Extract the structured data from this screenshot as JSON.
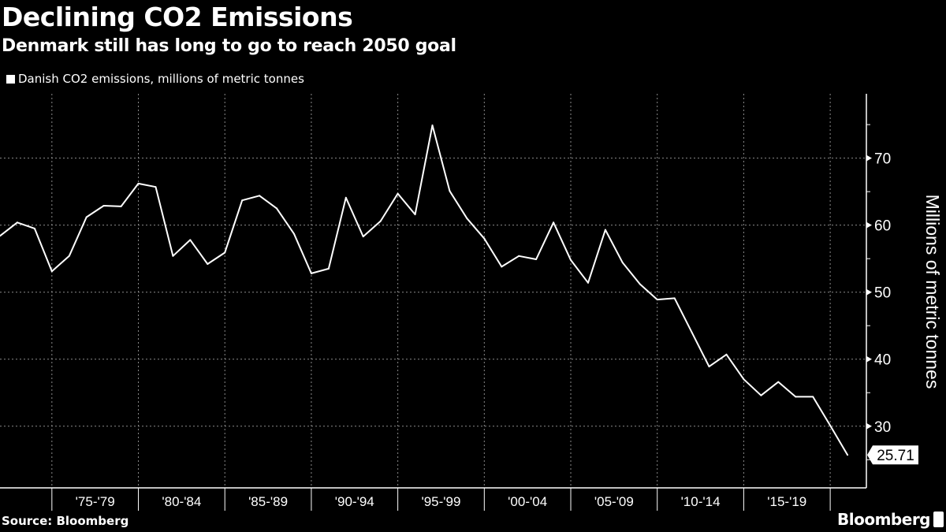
{
  "chart_data": {
    "type": "line",
    "title": "Declining CO2 Emissions",
    "subtitle": "Denmark still has long to go to reach 2050 goal",
    "legend": "Danish CO2 emissions, millions of metric tonnes",
    "legend_placement": "top-left",
    "ylabel": "Millions of metric tonnes",
    "y_axis_side": "right",
    "ylim": [
      20.8,
      79.6
    ],
    "yticks": [
      30,
      40,
      50,
      60,
      70
    ],
    "xlim": [
      1972,
      2022
    ],
    "x_tick_labels": [
      "'75-'79",
      "'80-'84",
      "'85-'89",
      "'90-'94",
      "'95-'99",
      "'00-'04",
      "'05-'09",
      "'10-'14",
      "'15-'19"
    ],
    "grid": true,
    "series": [
      {
        "name": "Danish CO2 emissions, millions of metric tonnes",
        "color": "#ffffff",
        "x": [
          1972,
          1973,
          1974,
          1975,
          1976,
          1977,
          1978,
          1979,
          1980,
          1981,
          1982,
          1983,
          1984,
          1985,
          1986,
          1987,
          1988,
          1989,
          1990,
          1991,
          1992,
          1993,
          1994,
          1995,
          1996,
          1997,
          1998,
          1999,
          2000,
          2001,
          2002,
          2003,
          2004,
          2005,
          2006,
          2007,
          2008,
          2009,
          2010,
          2011,
          2012,
          2013,
          2014,
          2015,
          2016,
          2017,
          2018,
          2019,
          2020,
          2021
        ],
        "values": [
          58.4,
          60.4,
          59.5,
          53.1,
          55.4,
          61.2,
          62.9,
          62.8,
          66.2,
          65.7,
          55.4,
          57.8,
          54.2,
          55.9,
          63.7,
          64.4,
          62.5,
          58.7,
          52.8,
          53.5,
          64.1,
          58.3,
          60.6,
          64.7,
          61.6,
          74.9,
          65.1,
          61.0,
          58.0,
          53.8,
          55.4,
          54.9,
          60.4,
          54.8,
          51.4,
          59.3,
          54.4,
          51.2,
          48.9,
          49.1,
          44.0,
          38.9,
          40.7,
          37.0,
          34.6,
          36.6,
          34.4,
          34.4,
          30.1,
          25.71
        ]
      }
    ],
    "last_value_label": "25.71"
  },
  "footer": {
    "source": "Source: Bloomberg",
    "brand": "Bloomberg"
  },
  "colors": {
    "background": "#000000",
    "line": "#ffffff",
    "grid": "#8a8a8a"
  }
}
